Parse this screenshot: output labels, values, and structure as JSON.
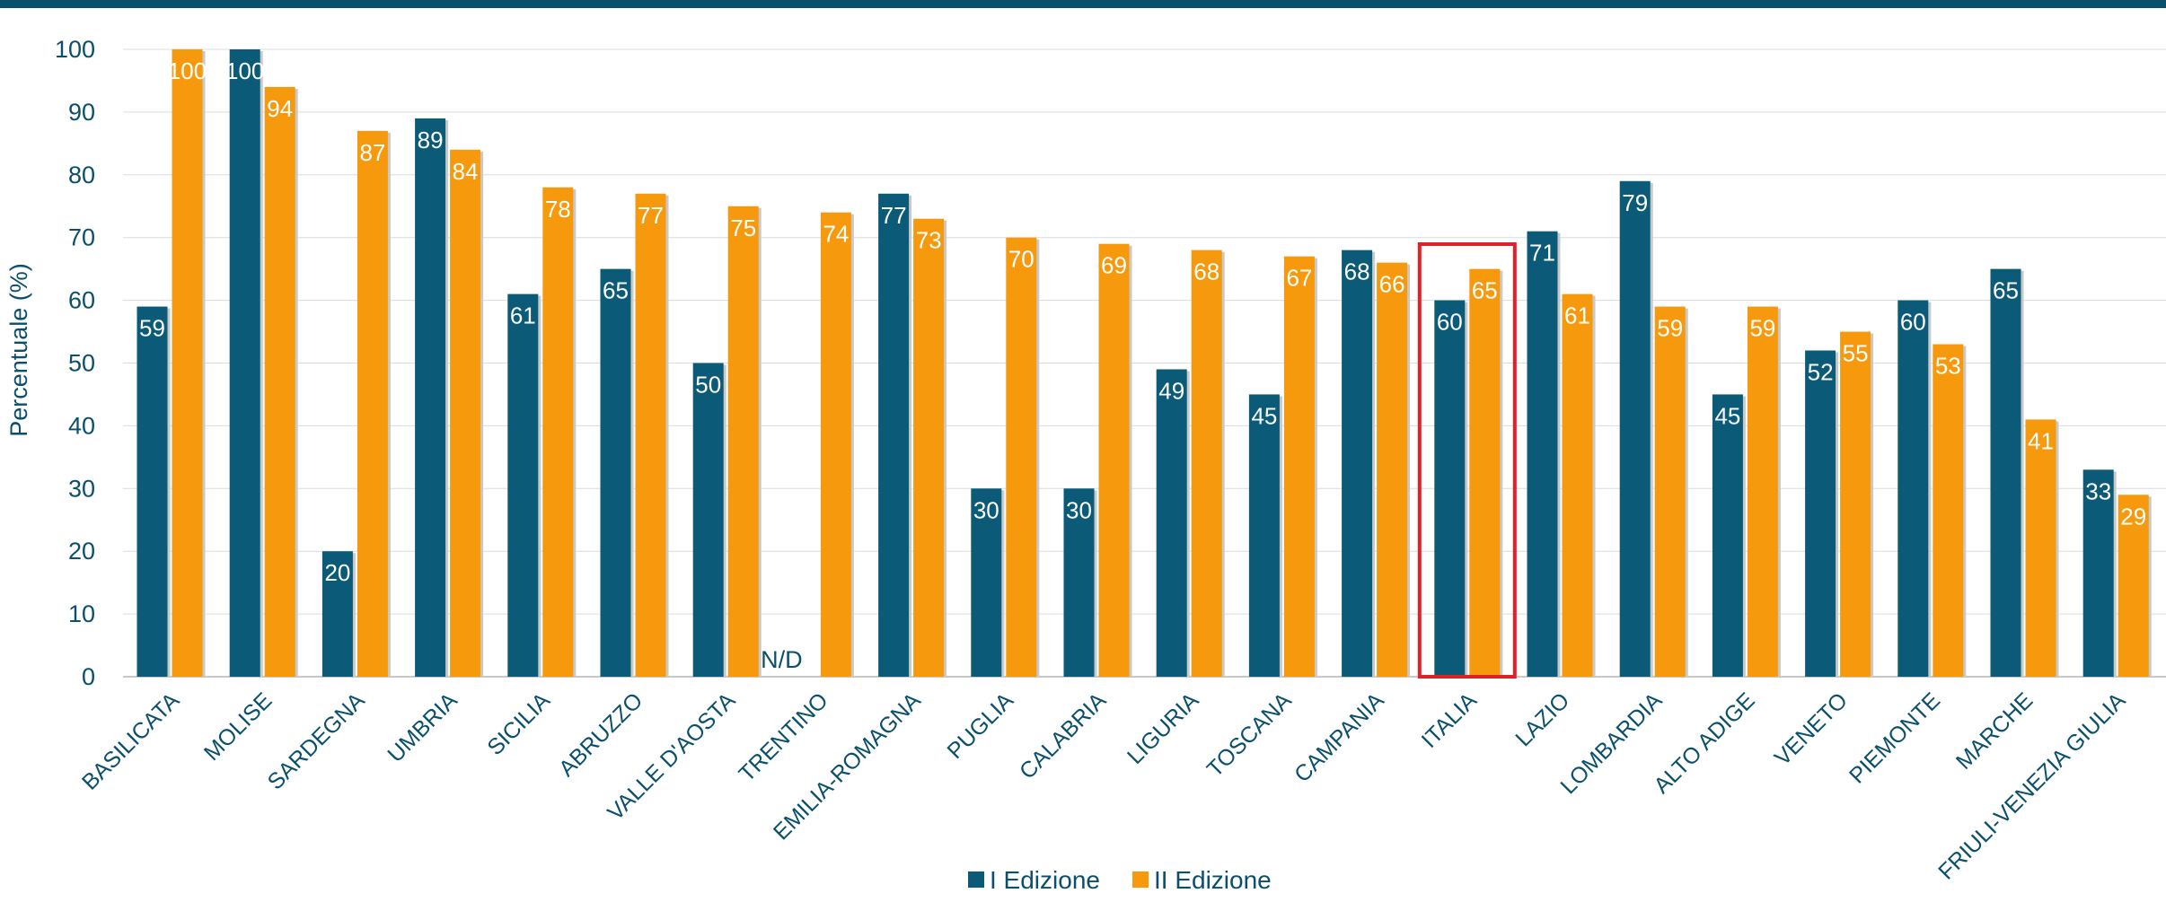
{
  "colors": {
    "top_bar": "#0a4f6b",
    "series_1": "#0a5a78",
    "series_2": "#f7990c",
    "highlight": "#e0202a",
    "axis_text": "#0a4f6b",
    "grid": "#dcdcdc"
  },
  "chart_data": {
    "type": "bar",
    "title": "",
    "xlabel": "",
    "ylabel": "Percentuale (%)",
    "ylim": [
      0,
      100
    ],
    "yticks": [
      0,
      10,
      20,
      30,
      40,
      50,
      60,
      70,
      80,
      90,
      100
    ],
    "grid": true,
    "legend_position": "bottom",
    "categories": [
      "BASILICATA",
      "MOLISE",
      "SARDEGNA",
      "UMBRIA",
      "SICILIA",
      "ABRUZZO",
      "VALLE D'AOSTA",
      "TRENTINO",
      "EMILIA-ROMAGNA",
      "PUGLIA",
      "CALABRIA",
      "LIGURIA",
      "TOSCANA",
      "CAMPANIA",
      "ITALIA",
      "LAZIO",
      "LOMBARDIA",
      "ALTO ADIGE",
      "VENETO",
      "PIEMONTE",
      "MARCHE",
      "FRIULI-VENEZIA GIULIA"
    ],
    "series": [
      {
        "name": "I Edizione",
        "values": [
          59,
          100,
          20,
          89,
          61,
          65,
          50,
          null,
          77,
          30,
          30,
          49,
          45,
          68,
          60,
          71,
          79,
          45,
          52,
          60,
          65,
          33
        ]
      },
      {
        "name": "II Edizione",
        "values": [
          100,
          94,
          87,
          84,
          78,
          77,
          75,
          74,
          73,
          70,
          69,
          68,
          67,
          66,
          65,
          61,
          59,
          59,
          55,
          53,
          41,
          29
        ]
      }
    ],
    "annotations": [
      {
        "text": "N/D",
        "category": "TRENTINO",
        "series": "I Edizione"
      }
    ],
    "highlighted_category": "ITALIA"
  }
}
